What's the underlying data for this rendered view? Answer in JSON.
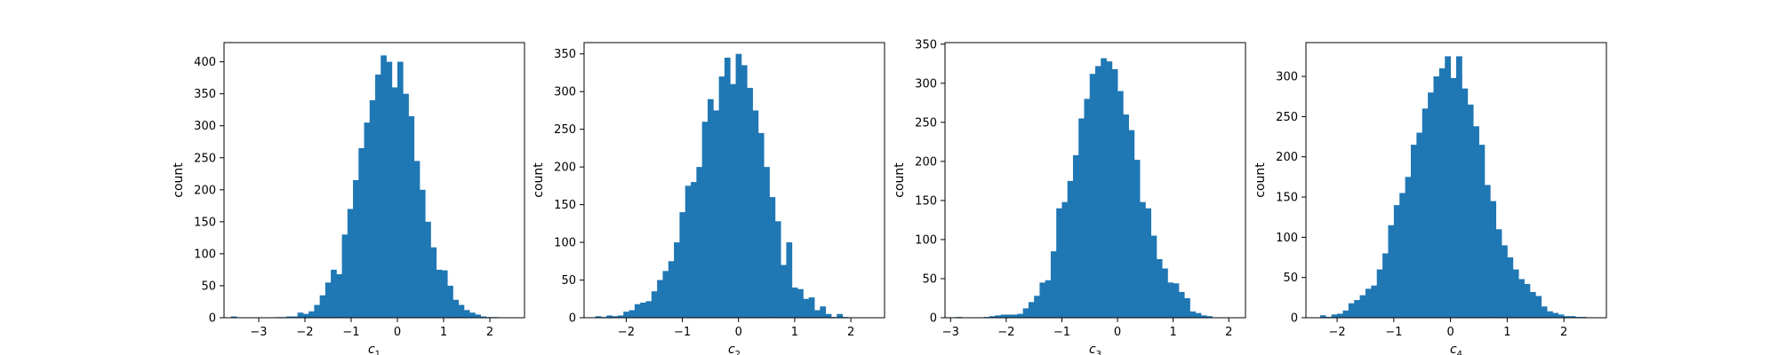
{
  "chart_data": [
    {
      "type": "bar",
      "xlabel": "c",
      "xlabel_sub": "1",
      "ylabel": "count",
      "xlim": [
        -3.75,
        2.75
      ],
      "ylim": [
        0,
        430
      ],
      "xticks": [
        -3,
        -2,
        -1,
        0,
        1,
        2
      ],
      "yticks": [
        0,
        50,
        100,
        150,
        200,
        250,
        300,
        350,
        400
      ],
      "xtick_labels": [
        "−3",
        "−2",
        "−1",
        "0",
        "1",
        "2"
      ],
      "ytick_labels": [
        "0",
        "50",
        "100",
        "150",
        "200",
        "250",
        "300",
        "350",
        "400"
      ],
      "bin_start": -3.6,
      "bin_width": 0.12,
      "values": [
        2,
        0,
        0,
        0,
        0,
        0,
        0,
        0,
        1,
        1,
        2,
        2,
        8,
        6,
        10,
        20,
        35,
        55,
        75,
        68,
        130,
        170,
        215,
        265,
        305,
        340,
        380,
        410,
        400,
        360,
        400,
        350,
        315,
        245,
        200,
        150,
        110,
        75,
        74,
        50,
        28,
        20,
        12,
        8,
        5,
        2,
        1,
        1
      ]
    },
    {
      "type": "bar",
      "xlabel": "c",
      "xlabel_sub": "2",
      "ylabel": "count",
      "xlim": [
        -2.75,
        2.6
      ],
      "ylim": [
        0,
        365
      ],
      "xticks": [
        -2,
        -1,
        0,
        1,
        2
      ],
      "yticks": [
        0,
        50,
        100,
        150,
        200,
        250,
        300,
        350
      ],
      "xtick_labels": [
        "−2",
        "−1",
        "0",
        "1",
        "2"
      ],
      "ytick_labels": [
        "0",
        "50",
        "100",
        "150",
        "200",
        "250",
        "300",
        "350"
      ],
      "bin_start": -2.55,
      "bin_width": 0.1,
      "values": [
        2,
        1,
        3,
        2,
        3,
        8,
        10,
        18,
        20,
        22,
        35,
        50,
        62,
        75,
        100,
        140,
        175,
        180,
        200,
        260,
        290,
        275,
        320,
        345,
        310,
        350,
        335,
        305,
        275,
        245,
        200,
        160,
        128,
        70,
        100,
        40,
        38,
        25,
        27,
        10,
        15,
        5,
        1,
        5,
        1
      ]
    },
    {
      "type": "bar",
      "xlabel": "c",
      "xlabel_sub": "3",
      "ylabel": "count",
      "xlim": [
        -3.1,
        2.3
      ],
      "ylim": [
        0,
        352
      ],
      "xticks": [
        -3,
        -2,
        -1,
        0,
        1,
        2
      ],
      "yticks": [
        0,
        50,
        100,
        150,
        200,
        250,
        300,
        350
      ],
      "xtick_labels": [
        "−3",
        "−2",
        "−1",
        "0",
        "1",
        "2"
      ],
      "ytick_labels": [
        "0",
        "50",
        "100",
        "150",
        "200",
        "250",
        "300",
        "350"
      ],
      "bin_start": -2.9,
      "bin_width": 0.1,
      "values": [
        1,
        0,
        0,
        0,
        0,
        1,
        2,
        3,
        4,
        4,
        4,
        5,
        12,
        20,
        28,
        45,
        48,
        85,
        140,
        148,
        175,
        208,
        255,
        280,
        312,
        322,
        332,
        328,
        318,
        290,
        260,
        240,
        202,
        148,
        140,
        105,
        75,
        63,
        45,
        44,
        33,
        25,
        8,
        6,
        3,
        2
      ]
    },
    {
      "type": "bar",
      "xlabel": "c",
      "xlabel_sub": "4",
      "ylabel": "count",
      "xlim": [
        -2.55,
        2.75
      ],
      "ylim": [
        0,
        342
      ],
      "xticks": [
        -2,
        -1,
        0,
        1,
        2
      ],
      "yticks": [
        0,
        50,
        100,
        150,
        200,
        250,
        300
      ],
      "xtick_labels": [
        "−2",
        "−1",
        "0",
        "1",
        "2"
      ],
      "ytick_labels": [
        "0",
        "50",
        "100",
        "150",
        "200",
        "250",
        "300"
      ],
      "bin_start": -2.3,
      "bin_width": 0.1,
      "values": [
        3,
        1,
        4,
        5,
        9,
        18,
        22,
        28,
        36,
        40,
        60,
        80,
        115,
        140,
        155,
        175,
        215,
        230,
        260,
        280,
        300,
        310,
        325,
        298,
        325,
        285,
        265,
        238,
        215,
        165,
        145,
        110,
        90,
        75,
        60,
        48,
        42,
        32,
        27,
        14,
        8,
        6,
        4,
        2,
        2,
        1,
        1
      ]
    }
  ]
}
